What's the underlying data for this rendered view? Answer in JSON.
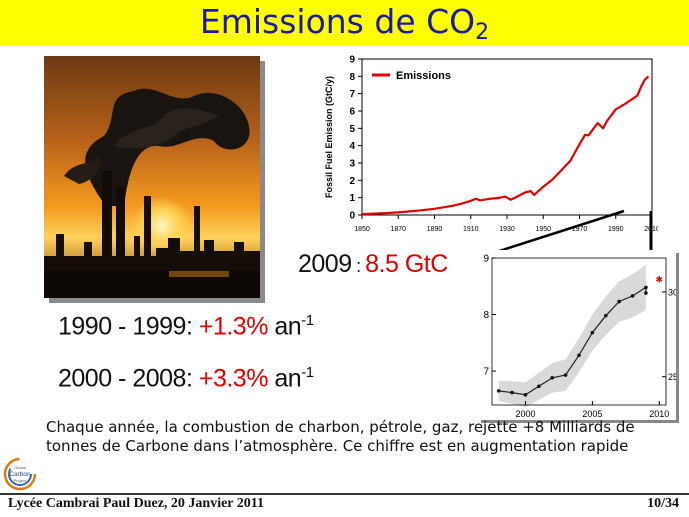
{
  "slide": {
    "title_main": "Emissions de CO",
    "title_sub": "2",
    "year_2009_label": "2009",
    "year_2009_sep": " : ",
    "year_2009_value": "8.5 GtC",
    "rate1_period": "1990 - 1999: ",
    "rate1_value": "+1.3%",
    "rate1_unit": " an",
    "rate1_exp": "-1",
    "rate2_period": "2000 - 2008: ",
    "rate2_value": "+3.3%",
    "rate2_unit": " an",
    "rate2_exp": "-1",
    "paragraph": "Chaque année, la combustion de charbon, pétrole, gaz, rejette +8 Milliards de tonnes de Carbone dans l’atmosphère.  Ce chiffre est en augmentation rapide",
    "footer_left": "Lycée Cambrai Paul Duez, 20 Janvier 2011",
    "footer_right": "10/34",
    "logo_line1": "Global",
    "logo_line2": "Carbon",
    "logo_line3": "Project"
  },
  "colors": {
    "title_bg": "#ffff00",
    "title_text": "#1a1aa8",
    "accent_red": "#e00000",
    "inset_band": "#d9d9d9"
  },
  "chart_data": [
    {
      "type": "line",
      "ylabel": "Fossil Fuel Emission (GtC/y)",
      "xlabel": "",
      "xticks": [
        "1850",
        "1870",
        "1890",
        "1910",
        "1930",
        "1950",
        "1970",
        "1990",
        "2010"
      ],
      "yticks": [
        "0",
        "1",
        "2",
        "3",
        "4",
        "5",
        "6",
        "7",
        "8",
        "9"
      ],
      "xlim": [
        1850,
        2010
      ],
      "ylim": [
        0,
        9
      ],
      "legend": "top-left",
      "series": [
        {
          "name": "Emissions",
          "color": "#e00000",
          "x": [
            1850,
            1860,
            1870,
            1880,
            1890,
            1900,
            1905,
            1910,
            1913,
            1915,
            1920,
            1925,
            1929,
            1932,
            1935,
            1940,
            1943,
            1945,
            1946,
            1950,
            1955,
            1960,
            1965,
            1970,
            1973,
            1975,
            1980,
            1983,
            1985,
            1990,
            1995,
            2000,
            2002,
            2004,
            2006,
            2008
          ],
          "y": [
            0.05,
            0.09,
            0.15,
            0.24,
            0.36,
            0.53,
            0.66,
            0.82,
            0.94,
            0.84,
            0.93,
            0.98,
            1.06,
            0.88,
            1.03,
            1.3,
            1.38,
            1.16,
            1.25,
            1.63,
            2.04,
            2.58,
            3.14,
            4.08,
            4.62,
            4.6,
            5.3,
            5.0,
            5.4,
            6.1,
            6.4,
            6.75,
            6.9,
            7.4,
            7.8,
            8.0
          ]
        }
      ]
    },
    {
      "type": "line",
      "xticks": [
        "2000",
        "2005",
        "2010"
      ],
      "yticks_left": [
        "7",
        "8",
        "9"
      ],
      "yticks_right": [
        "25",
        "30"
      ],
      "xlim": [
        1997.5,
        2010.5
      ],
      "ylim": [
        6.4,
        9.0
      ],
      "series": [
        {
          "name": "",
          "color": "#222222",
          "x": [
            1998,
            1999,
            2000,
            2001,
            2002,
            2003,
            2004,
            2005,
            2006,
            2007,
            2008,
            2009
          ],
          "y": [
            6.65,
            6.62,
            6.58,
            6.73,
            6.88,
            6.93,
            7.28,
            7.68,
            7.98,
            8.23,
            8.33,
            8.48
          ]
        },
        {
          "name": "",
          "color": "#222222",
          "x": [
            2009
          ],
          "y": [
            8.38
          ]
        },
        {
          "name": "",
          "color": "#e00000",
          "x": [
            2010
          ],
          "y": [
            8.62
          ]
        }
      ]
    }
  ]
}
